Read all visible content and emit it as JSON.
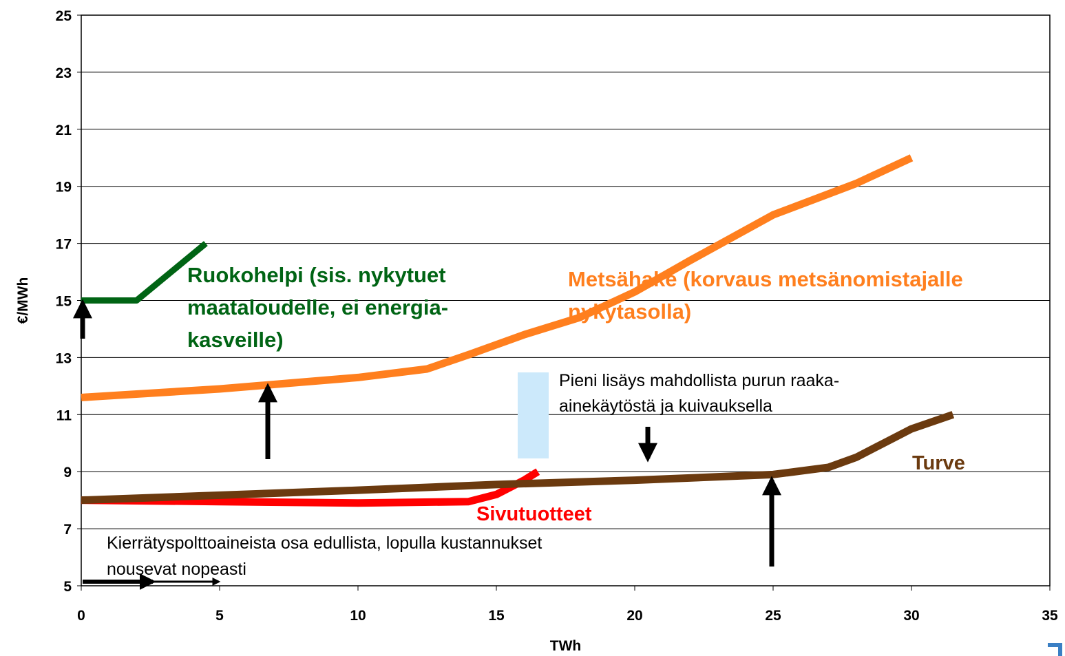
{
  "chart_data": {
    "type": "line",
    "x_label": "TWh",
    "y_label": "€/MWh",
    "xlim": [
      0,
      35
    ],
    "xticks": [
      0,
      5,
      10,
      15,
      20,
      25,
      30,
      35
    ],
    "ylim": [
      5,
      25
    ],
    "yticks": [
      5,
      7,
      9,
      11,
      13,
      15,
      17,
      19,
      21,
      23,
      25
    ],
    "grid": true,
    "series": [
      {
        "name_lines": [
          "Ruokohelpi (sis. nykytuet",
          "maataloudelle, ei energia-",
          "kasveille)"
        ],
        "color": "#006414",
        "x": [
          0,
          2,
          4.5
        ],
        "values": [
          15,
          15,
          17
        ]
      },
      {
        "name_lines": [
          "Metsähake (korvaus metsänomistajalle",
          "nykytasolla)"
        ],
        "color": "#ff7f1e",
        "x": [
          0,
          5,
          10,
          12.5,
          14,
          16,
          18,
          20,
          22,
          25,
          28,
          30
        ],
        "values": [
          11.6,
          11.9,
          12.3,
          12.6,
          13.1,
          13.8,
          14.4,
          15.3,
          16.4,
          18.0,
          19.1,
          20.0
        ]
      },
      {
        "name_lines": [
          "Sivutuotteet"
        ],
        "color": "#ff0000",
        "x": [
          0,
          5,
          10,
          14,
          15,
          16,
          16.5
        ],
        "values": [
          8,
          7.95,
          7.9,
          7.95,
          8.2,
          8.7,
          9.0
        ]
      },
      {
        "name_lines": [
          "Turve"
        ],
        "color": "#6b3a0f",
        "x": [
          0,
          10,
          15,
          20,
          25,
          27,
          28,
          29,
          30,
          31.5
        ],
        "values": [
          8,
          8.35,
          8.55,
          8.7,
          8.9,
          9.15,
          9.5,
          10,
          10.5,
          11
        ]
      }
    ],
    "annotations": [
      {
        "lines": [
          "Pieni lisäys mahdollista purun raaka-",
          "ainekäytöstä ja kuivauksella"
        ]
      },
      {
        "lines": [
          "Kierrätyspolttoaineista osa edullista, lopulla kustannukset",
          "nousevat nopeasti"
        ]
      }
    ]
  }
}
